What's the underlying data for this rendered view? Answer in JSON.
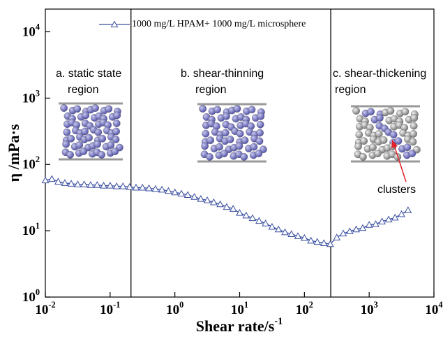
{
  "chart_data": {
    "type": "line",
    "x_label": "Shear rate/s^-1",
    "y_label": "η /mPa·s",
    "log_x": true,
    "log_y": true,
    "xlim": [
      0.01,
      10000
    ],
    "ylim": [
      1,
      22000
    ],
    "xticks": [
      {
        "value": 0.01,
        "label": "10^-2"
      },
      {
        "value": 0.1,
        "label": "10^-1"
      },
      {
        "value": 1,
        "label": "10^0"
      },
      {
        "value": 10,
        "label": "10^1"
      },
      {
        "value": 100,
        "label": "10^2"
      },
      {
        "value": 1000,
        "label": "10^3"
      },
      {
        "value": 10000,
        "label": "10^4"
      }
    ],
    "yticks": [
      {
        "value": 1,
        "label": "10^0"
      },
      {
        "value": 10,
        "label": "10^1"
      },
      {
        "value": 100,
        "label": "10^2"
      },
      {
        "value": 1000,
        "label": "10^3"
      },
      {
        "value": 10000,
        "label": "10^4"
      }
    ],
    "vlines": [
      0.21,
      255
    ],
    "annotations": [
      "a. static state",
      "region",
      "b. shear-thinning",
      "region",
      "c. shear-thickening",
      "region",
      "clusters"
    ],
    "x": [
      0.01,
      0.0126,
      0.0158,
      0.02,
      0.0251,
      0.0316,
      0.0398,
      0.0501,
      0.0631,
      0.0794,
      0.1,
      0.126,
      0.158,
      0.2,
      0.251,
      0.316,
      0.398,
      0.501,
      0.631,
      0.794,
      1,
      1.26,
      1.58,
      2,
      2.51,
      3.16,
      3.98,
      5.01,
      6.31,
      7.94,
      10,
      12.6,
      15.8,
      20,
      25.1,
      31.6,
      39.8,
      50.1,
      63.1,
      79.4,
      100,
      126,
      158,
      200,
      251,
      316,
      398,
      501,
      631,
      794,
      1000,
      1260,
      1580,
      2000,
      2510,
      3160,
      3980
    ],
    "series": [
      {
        "name": "1000 mg/L HPAM+ 1000 mg/L microsphere",
        "color": "#3a4fa0",
        "values": [
          57.5,
          60.3,
          55,
          52.5,
          51.3,
          50.1,
          50.1,
          49,
          49,
          47.9,
          47.9,
          46.8,
          46.8,
          45.7,
          44.7,
          44.7,
          43.7,
          42.7,
          41.7,
          39.8,
          38,
          36.3,
          34.7,
          32.4,
          30.2,
          28.8,
          26.9,
          25.1,
          22.9,
          21.4,
          18.6,
          17,
          15.5,
          14.1,
          12.9,
          11.5,
          10.5,
          9.5,
          8.9,
          8.3,
          7.8,
          7.1,
          6.8,
          6.5,
          6.3,
          7.9,
          9.1,
          9.8,
          10.5,
          11,
          12.3,
          12.6,
          13.8,
          14.8,
          15.8,
          17.8,
          20.4
        ]
      }
    ]
  }
}
